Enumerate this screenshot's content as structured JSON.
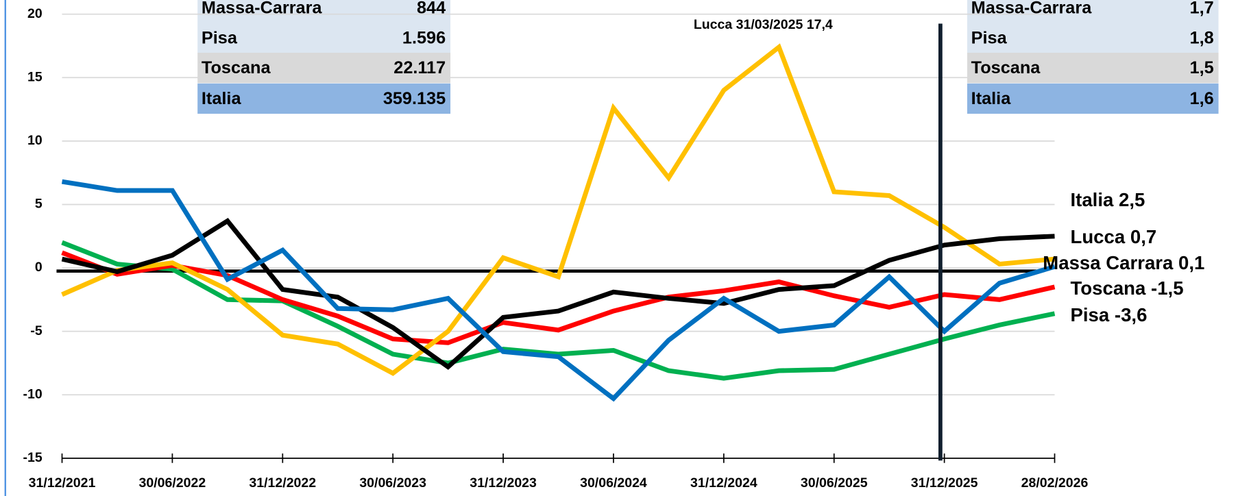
{
  "chart_data": {
    "type": "line",
    "categories": [
      "31/12/2021",
      null,
      "30/06/2022",
      null,
      "31/12/2022",
      null,
      "30/06/2023",
      null,
      "31/12/2023",
      null,
      "30/06/2024",
      null,
      "31/12/2024",
      null,
      "30/06/2025",
      null,
      "31/12/2025",
      null,
      "28/02/2026"
    ],
    "series": [
      {
        "name": "Italia",
        "color": "#000000",
        "values": [
          0.7,
          -0.3,
          1.0,
          3.7,
          -1.7,
          -2.3,
          -4.7,
          -7.8,
          -3.9,
          -3.4,
          -1.9,
          -2.4,
          -2.8,
          -1.7,
          -1.4,
          0.6,
          1.8,
          2.3,
          2.5
        ],
        "value_labels": [
          null,
          null,
          null,
          null,
          null,
          null,
          null,
          null,
          null,
          null,
          null,
          null,
          null,
          null,
          null,
          null,
          null,
          null,
          "2,5"
        ]
      },
      {
        "name": "Lucca",
        "color": "#ffc000",
        "values": [
          -2.1,
          -0.2,
          0.4,
          -1.7,
          -5.3,
          -6.0,
          -8.3,
          -5.0,
          0.8,
          -0.7,
          12.6,
          7.1,
          14.0,
          17.4,
          6.0,
          5.7,
          3.2,
          0.3,
          0.7
        ],
        "value_labels": [
          null,
          null,
          null,
          null,
          null,
          null,
          null,
          null,
          null,
          null,
          null,
          null,
          null,
          null,
          null,
          null,
          null,
          null,
          "0,7"
        ]
      },
      {
        "name": "Massa Carrara",
        "color": "#0070c0",
        "values": [
          6.8,
          6.1,
          6.1,
          -0.9,
          1.4,
          -3.2,
          -3.3,
          -2.4,
          -6.6,
          -7.0,
          -10.3,
          -5.7,
          -2.4,
          -5.0,
          -4.5,
          -0.7,
          -5.0,
          -1.2,
          0.1
        ],
        "value_labels": [
          null,
          null,
          null,
          null,
          null,
          null,
          null,
          null,
          null,
          null,
          null,
          null,
          null,
          null,
          null,
          null,
          null,
          null,
          "0,1"
        ]
      },
      {
        "name": "Toscana",
        "color": "#ff0000",
        "values": [
          1.2,
          -0.5,
          0.2,
          -0.6,
          -2.5,
          -3.8,
          -5.6,
          -5.9,
          -4.3,
          -4.9,
          -3.4,
          -2.3,
          -1.8,
          -1.1,
          -2.2,
          -3.1,
          -2.1,
          -2.5,
          -1.5
        ],
        "value_labels": [
          null,
          null,
          null,
          null,
          null,
          null,
          null,
          null,
          null,
          null,
          null,
          null,
          null,
          null,
          null,
          null,
          null,
          null,
          "-1,5"
        ]
      },
      {
        "name": "Pisa",
        "color": "#00b050",
        "values": [
          2.0,
          0.3,
          -0.1,
          -2.5,
          -2.6,
          -4.6,
          -6.8,
          -7.5,
          -6.4,
          -6.8,
          -6.5,
          -8.1,
          -8.7,
          -8.1,
          -8.0,
          -6.8,
          -5.6,
          -4.5,
          -3.6
        ],
        "value_labels": [
          null,
          null,
          null,
          null,
          null,
          null,
          null,
          null,
          null,
          null,
          null,
          null,
          null,
          null,
          null,
          null,
          null,
          null,
          "-3,6"
        ]
      }
    ],
    "ylim": [
      -15,
      20
    ],
    "yticks": [
      -15,
      -10,
      -5,
      0,
      5,
      10,
      15,
      20
    ],
    "grid": true,
    "annotations": [
      "Lucca 31/03/2025 17,4"
    ]
  },
  "tables": [
    {
      "rows": [
        [
          "Massa-Carrara",
          "844"
        ],
        [
          "Pisa",
          "1.596"
        ],
        [
          "Toscana",
          "22.117"
        ],
        [
          "Italia",
          "359.135"
        ]
      ]
    },
    {
      "rows": [
        [
          "Massa-Carrara",
          "1,7"
        ],
        [
          "Pisa",
          "1,8"
        ],
        [
          "Toscana",
          "1,5"
        ],
        [
          "Italia",
          "1,6"
        ]
      ]
    }
  ]
}
